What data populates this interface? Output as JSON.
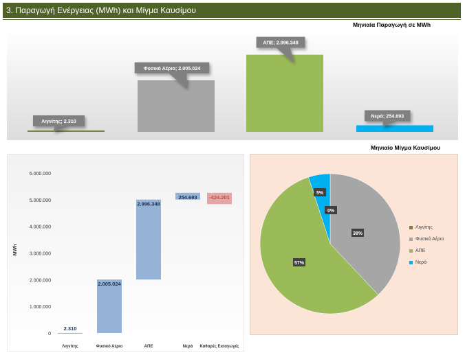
{
  "header": {
    "title": "3. Παραγωγή Ενέργειας (MWh) και Μίγμα Καυσίμου"
  },
  "colors": {
    "header": "#4f6228",
    "lignite": "#7f7f3f",
    "gas": "#a6a6a6",
    "res": "#9bbb59",
    "water": "#00b0f0",
    "waterfall": "#95b3d7",
    "imports": "#e6a5a5",
    "pie_bg": "#fce4d6"
  },
  "chart_data": [
    {
      "type": "bar",
      "title": "Μηνιαία Παραγωγή σε MWh",
      "categories": [
        "Λιγνίτης",
        "Φυσικό Αέριο",
        "ΑΠΕ",
        "Νερά"
      ],
      "values": [
        2310,
        2005024,
        2996348,
        254693
      ],
      "data_labels": [
        "Λιγνίτης; 2.310",
        "Φυσικό Αέριο; 2.005.024",
        "ΑΠΕ; 2.996.348",
        "Νερά; 254.693"
      ],
      "ylim": [
        0,
        3200000
      ],
      "grid": false
    },
    {
      "type": "bar",
      "subtype": "waterfall",
      "ylabel": "MWh",
      "categories": [
        "Λιγνίτης",
        "Φυσικό Αέριο",
        "ΑΠΕ",
        "Νερά",
        "Καθαρές Εισαγωγές"
      ],
      "values": [
        2310,
        2005024,
        2996348,
        254693,
        -424201
      ],
      "data_labels": [
        "2.310",
        "2.005.024",
        "2.996.348",
        "254.693",
        "-424.201"
      ],
      "ylim": [
        0,
        6000000
      ],
      "yticks": [
        "0",
        "1.000.000",
        "2.000.000",
        "3.000.000",
        "4.000.000",
        "5.000.000",
        "6.000.000"
      ],
      "grid": false
    },
    {
      "type": "pie",
      "title": "Μηνιαίο Μίγμα Καυσίμου",
      "categories": [
        "Λιγνίτης",
        "Φυσικό Αέριο",
        "ΑΠΕ",
        "Νερά"
      ],
      "values": [
        0,
        38,
        57,
        5
      ],
      "data_labels": [
        "0%",
        "38%",
        "57%",
        "5%"
      ],
      "legend": "right"
    }
  ]
}
